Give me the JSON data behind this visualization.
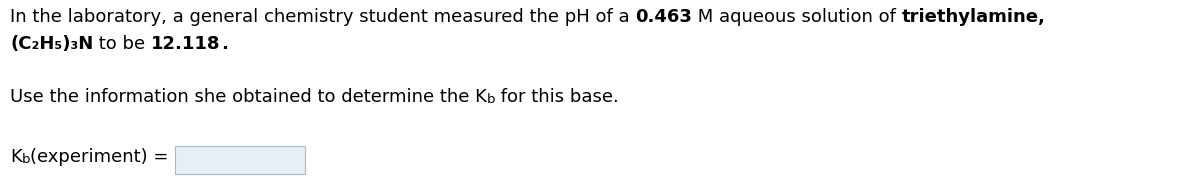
{
  "background_color": "#ffffff",
  "text_color": "#000000",
  "font_size": 13.0,
  "sub_font_size": 9.5,
  "line1_seg1": "In the laboratory, a general chemistry student measured the pH of a ",
  "line1_seg2": "0.463",
  "line1_seg3": " M aqueous solution of ",
  "line1_seg4": "triethylamine,",
  "line2_seg1": "(C₂H₅)₃N",
  "line2_seg2": " to be ",
  "line2_seg3": "12.118",
  "line2_seg4": ".",
  "line3_seg1": "Use the information she obtained to determine the K",
  "line3_sub": "b",
  "line3_seg2": " for this base.",
  "line4_seg1": "K",
  "line4_sub": "b",
  "line4_seg2": "(experiment) =",
  "box_color": "#e8eef8",
  "box_border_color": "#b0b8c8"
}
